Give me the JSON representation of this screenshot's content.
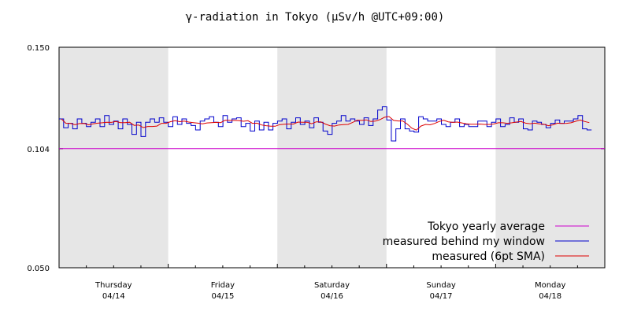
{
  "chart_data": {
    "type": "line",
    "title": "γ-radiation in Tokyo (μSv/h @UTC+09:00)",
    "xlabel": "",
    "ylabel": "",
    "y_ticks": [
      "0.150",
      "0.104",
      "0.050"
    ],
    "ylim": [
      0.05,
      0.15
    ],
    "x_range_days": [
      0,
      5
    ],
    "days": [
      {
        "weekday": "Thursday",
        "date": "04/14",
        "shaded": true
      },
      {
        "weekday": "Friday",
        "date": "04/15",
        "shaded": false
      },
      {
        "weekday": "Saturday",
        "date": "04/16",
        "shaded": true
      },
      {
        "weekday": "Sunday",
        "date": "04/17",
        "shaded": false
      },
      {
        "weekday": "Monday",
        "date": "04/18",
        "shaded": true
      }
    ],
    "series": [
      {
        "name": "Tokyo yearly average",
        "kind": "constant",
        "color": "#cc00cc",
        "value": 0.104
      },
      {
        "name": "measured behind my window",
        "kind": "step",
        "color": "#0000cc",
        "step_days": 0.0417,
        "values": [
          0.1175,
          0.1135,
          0.1155,
          0.113,
          0.1175,
          0.1155,
          0.114,
          0.116,
          0.1175,
          0.114,
          0.119,
          0.115,
          0.1165,
          0.113,
          0.1175,
          0.115,
          0.1105,
          0.116,
          0.1095,
          0.116,
          0.1175,
          0.116,
          0.118,
          0.116,
          0.114,
          0.1185,
          0.115,
          0.1175,
          0.1155,
          0.1145,
          0.1125,
          0.1165,
          0.1175,
          0.1185,
          0.116,
          0.114,
          0.119,
          0.116,
          0.1175,
          0.118,
          0.114,
          0.1155,
          0.112,
          0.1165,
          0.1125,
          0.116,
          0.1125,
          0.1155,
          0.1165,
          0.1175,
          0.113,
          0.116,
          0.118,
          0.115,
          0.1165,
          0.1135,
          0.118,
          0.116,
          0.112,
          0.1105,
          0.1155,
          0.1165,
          0.119,
          0.1165,
          0.1175,
          0.1165,
          0.115,
          0.118,
          0.1145,
          0.1175,
          0.1215,
          0.123,
          0.117,
          0.1075,
          0.113,
          0.1175,
          0.113,
          0.112,
          0.1115,
          0.1185,
          0.1175,
          0.1165,
          0.1165,
          0.1175,
          0.115,
          0.114,
          0.116,
          0.1175,
          0.114,
          0.115,
          0.114,
          0.114,
          0.1165,
          0.1165,
          0.114,
          0.116,
          0.1175,
          0.114,
          0.115,
          0.118,
          0.116,
          0.1175,
          0.113,
          0.1125,
          0.1165,
          0.116,
          0.115,
          0.1135,
          0.1155,
          0.117,
          0.1155,
          0.1165,
          0.1165,
          0.1175,
          0.119,
          0.113,
          0.1125
        ]
      },
      {
        "name": "measured (6pt SMA)",
        "kind": "smoothed",
        "color": "#dd0000"
      }
    ],
    "legend_position": "bottom-right",
    "grid": false,
    "background": "#ffffff",
    "shade_color": "#e6e6e6"
  }
}
